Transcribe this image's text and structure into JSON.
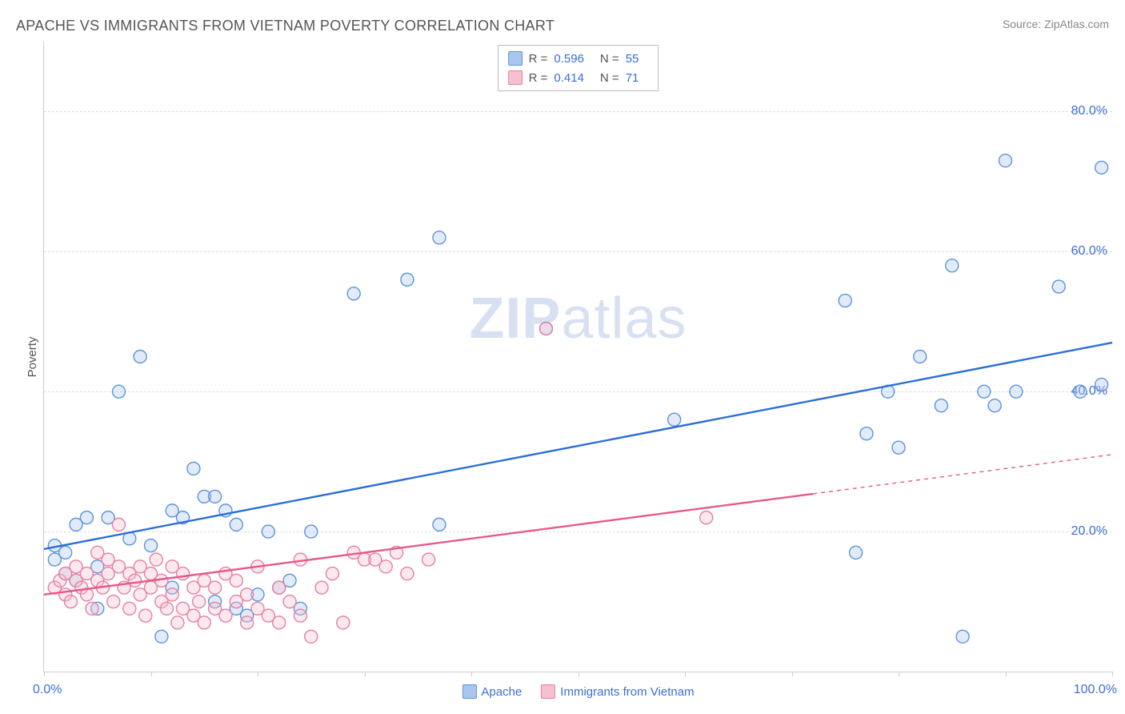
{
  "title": "APACHE VS IMMIGRANTS FROM VIETNAM POVERTY CORRELATION CHART",
  "source": "Source: ZipAtlas.com",
  "watermark": "ZIPatlas",
  "y_axis_title": "Poverty",
  "chart": {
    "type": "scatter",
    "xlim": [
      0,
      100
    ],
    "ylim": [
      0,
      90
    ],
    "x_ticks": [
      0,
      10,
      20,
      30,
      40,
      50,
      60,
      70,
      80,
      90,
      100
    ],
    "x_tick_labels": {
      "0": "0.0%",
      "100": "100.0%"
    },
    "y_grid": [
      20,
      40,
      60,
      80
    ],
    "y_tick_labels": {
      "20": "20.0%",
      "40": "40.0%",
      "60": "60.0%",
      "80": "80.0%"
    },
    "background_color": "#ffffff",
    "grid_color": "#dddddd",
    "axis_color": "#cccccc",
    "tick_label_color": "#3b6fd6",
    "marker_radius": 8,
    "marker_fill_opacity": 0.35,
    "marker_stroke_width": 1.4,
    "trend_line_width": 2.4
  },
  "series": [
    {
      "name": "Apache",
      "color_fill": "#a9c6ef",
      "color_stroke": "#5e93db",
      "line_color": "#2b6fd6",
      "R": "0.596",
      "N": "55",
      "trend": {
        "x1": 0,
        "y1": 17.5,
        "x2": 100,
        "y2": 47,
        "dash_from_x": null
      },
      "points": [
        [
          1,
          16
        ],
        [
          1,
          18
        ],
        [
          2,
          14
        ],
        [
          2,
          17
        ],
        [
          3,
          21
        ],
        [
          3,
          13
        ],
        [
          4,
          22
        ],
        [
          5,
          15
        ],
        [
          5,
          9
        ],
        [
          6,
          22
        ],
        [
          7,
          40
        ],
        [
          8,
          19
        ],
        [
          9,
          45
        ],
        [
          10,
          18
        ],
        [
          11,
          5
        ],
        [
          12,
          23
        ],
        [
          12,
          12
        ],
        [
          13,
          22
        ],
        [
          14,
          29
        ],
        [
          15,
          25
        ],
        [
          16,
          10
        ],
        [
          16,
          25
        ],
        [
          17,
          23
        ],
        [
          18,
          21
        ],
        [
          18,
          9
        ],
        [
          19,
          8
        ],
        [
          20,
          11
        ],
        [
          21,
          20
        ],
        [
          22,
          12
        ],
        [
          23,
          13
        ],
        [
          24,
          9
        ],
        [
          25,
          20
        ],
        [
          29,
          54
        ],
        [
          34,
          56
        ],
        [
          37,
          21
        ],
        [
          37,
          62
        ],
        [
          47,
          49
        ],
        [
          59,
          36
        ],
        [
          75,
          53
        ],
        [
          76,
          17
        ],
        [
          77,
          34
        ],
        [
          79,
          40
        ],
        [
          80,
          32
        ],
        [
          82,
          45
        ],
        [
          84,
          38
        ],
        [
          85,
          58
        ],
        [
          86,
          5
        ],
        [
          88,
          40
        ],
        [
          89,
          38
        ],
        [
          90,
          73
        ],
        [
          91,
          40
        ],
        [
          95,
          55
        ],
        [
          97,
          40
        ],
        [
          99,
          72
        ],
        [
          99,
          41
        ]
      ]
    },
    {
      "name": "Immigrants from Vietnam",
      "color_fill": "#f5c0cf",
      "color_stroke": "#e77fa2",
      "line_color": "#e65a88",
      "R": "0.414",
      "N": "71",
      "trend": {
        "x1": 0,
        "y1": 11,
        "x2": 100,
        "y2": 31,
        "dash_from_x": 72
      },
      "points": [
        [
          1,
          12
        ],
        [
          1.5,
          13
        ],
        [
          2,
          11
        ],
        [
          2,
          14
        ],
        [
          2.5,
          10
        ],
        [
          3,
          13
        ],
        [
          3,
          15
        ],
        [
          3.5,
          12
        ],
        [
          4,
          14
        ],
        [
          4,
          11
        ],
        [
          4.5,
          9
        ],
        [
          5,
          13
        ],
        [
          5,
          17
        ],
        [
          5.5,
          12
        ],
        [
          6,
          14
        ],
        [
          6,
          16
        ],
        [
          6.5,
          10
        ],
        [
          7,
          15
        ],
        [
          7,
          21
        ],
        [
          7.5,
          12
        ],
        [
          8,
          14
        ],
        [
          8,
          9
        ],
        [
          8.5,
          13
        ],
        [
          9,
          15
        ],
        [
          9,
          11
        ],
        [
          9.5,
          8
        ],
        [
          10,
          14
        ],
        [
          10,
          12
        ],
        [
          10.5,
          16
        ],
        [
          11,
          10
        ],
        [
          11,
          13
        ],
        [
          11.5,
          9
        ],
        [
          12,
          15
        ],
        [
          12,
          11
        ],
        [
          12.5,
          7
        ],
        [
          13,
          14
        ],
        [
          13,
          9
        ],
        [
          14,
          12
        ],
        [
          14,
          8
        ],
        [
          14.5,
          10
        ],
        [
          15,
          13
        ],
        [
          15,
          7
        ],
        [
          16,
          12
        ],
        [
          16,
          9
        ],
        [
          17,
          14
        ],
        [
          17,
          8
        ],
        [
          18,
          10
        ],
        [
          18,
          13
        ],
        [
          19,
          7
        ],
        [
          19,
          11
        ],
        [
          20,
          9
        ],
        [
          20,
          15
        ],
        [
          21,
          8
        ],
        [
          22,
          12
        ],
        [
          22,
          7
        ],
        [
          23,
          10
        ],
        [
          24,
          16
        ],
        [
          24,
          8
        ],
        [
          25,
          5
        ],
        [
          26,
          12
        ],
        [
          27,
          14
        ],
        [
          28,
          7
        ],
        [
          29,
          17
        ],
        [
          30,
          16
        ],
        [
          31,
          16
        ],
        [
          32,
          15
        ],
        [
          33,
          17
        ],
        [
          34,
          14
        ],
        [
          36,
          16
        ],
        [
          47,
          49
        ],
        [
          62,
          22
        ]
      ]
    }
  ],
  "legend_top_labels": {
    "R": "R =",
    "N": "N ="
  },
  "legend_bottom": [
    "Apache",
    "Immigrants from Vietnam"
  ]
}
